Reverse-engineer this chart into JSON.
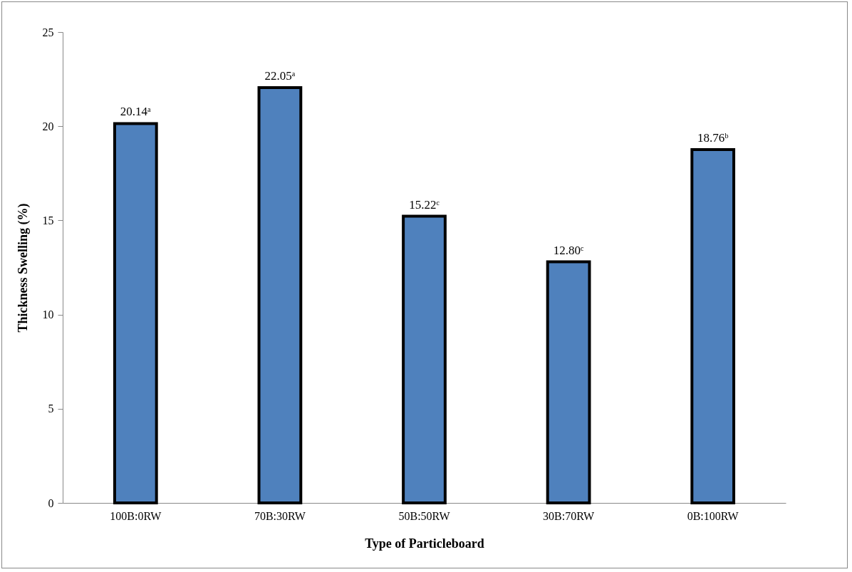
{
  "chart_data": {
    "type": "bar",
    "xlabel": "Type of Particleboard",
    "ylabel": "Thickness Swelling (%)",
    "categories": [
      "100B:0RW",
      "70B:30RW",
      "50B:50RW",
      "30B:70RW",
      "0B:100RW"
    ],
    "values": [
      20.14,
      22.05,
      15.22,
      12.8,
      18.76
    ],
    "value_labels": [
      "20.14ᵃ",
      "22.05ᵃ",
      "15.22ᶜ",
      "12.80ᶜ",
      "18.76ᵇ"
    ],
    "color": "#4f81bd",
    "ylim": [
      0,
      25
    ],
    "yticks": [
      0,
      5,
      10,
      15,
      20,
      25
    ],
    "grid": false
  }
}
